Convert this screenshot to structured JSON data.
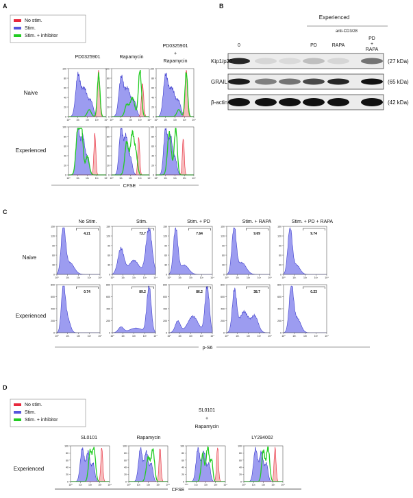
{
  "panel_labels": [
    "A",
    "B",
    "C",
    "D"
  ],
  "panel_a": {
    "legend": [
      {
        "label": "No stim.",
        "color": "#e8283c"
      },
      {
        "label": "Stim.",
        "color": "#5555dd"
      },
      {
        "label": "Stim. + inhibitor",
        "color": "#22cc22"
      }
    ],
    "columns": [
      [
        "PD0325901"
      ],
      [
        "Rapamycin"
      ],
      [
        "PD0325901",
        "+",
        "Rapamycin"
      ]
    ],
    "rows": [
      "Naive",
      "Experienced"
    ],
    "x_label": "CFSE",
    "yticks": [
      0,
      20,
      40,
      60,
      80,
      100
    ],
    "xticks": [
      "10⁰",
      "10¹",
      "10²",
      "10³",
      "10⁴"
    ]
  },
  "panel_b": {
    "title": "Experienced",
    "treatment": "anti-CD3/28",
    "lanes": [
      [
        "0"
      ],
      [
        "PD"
      ],
      [
        "RAPA"
      ],
      [
        "PD",
        "+",
        "RAPA"
      ]
    ],
    "bands": [
      {
        "protein": "Kip1/p27",
        "size": "(27 kDa)"
      },
      {
        "protein": "GRAIL",
        "size": "(65 kDa)"
      },
      {
        "protein": "β-actin",
        "size": "(42 kDa)"
      }
    ]
  },
  "panel_c": {
    "columns": [
      "No Stim.",
      "Stim.",
      "Stim. + PD",
      "Stim. + RAPA",
      "Stim. + PD + RAPA"
    ],
    "rows": [
      "Naive",
      "Experienced"
    ],
    "x_label": "p-S6",
    "gates": [
      [
        4.21,
        73.7,
        7.64,
        9.69,
        9.74
      ],
      [
        0.74,
        89.2,
        86.2,
        38.7,
        0.23
      ]
    ],
    "yticks": [
      [
        0,
        30,
        60,
        90,
        120,
        150
      ],
      [
        0,
        200,
        400,
        600,
        800
      ]
    ],
    "xticks": [
      "10⁰",
      "10¹",
      "10²",
      "10³",
      "10⁴"
    ]
  },
  "panel_d": {
    "legend": [
      {
        "label": "No stim.",
        "color": "#e8283c"
      },
      {
        "label": "Stim.",
        "color": "#5555dd"
      },
      {
        "label": "Stim. + inhibitor",
        "color": "#22cc22"
      }
    ],
    "columns": [
      [
        "SL0101"
      ],
      [
        "Rapamycin"
      ],
      [
        "SL0101",
        "+",
        "Rapamycin"
      ],
      [
        "LY294002"
      ]
    ],
    "row": "Experienced",
    "x_label": "CFSE",
    "yticks": [
      0,
      20,
      40,
      60,
      80,
      100
    ],
    "xticks": [
      "10⁰",
      "10¹",
      "10²",
      "10³",
      "10⁴"
    ]
  }
}
